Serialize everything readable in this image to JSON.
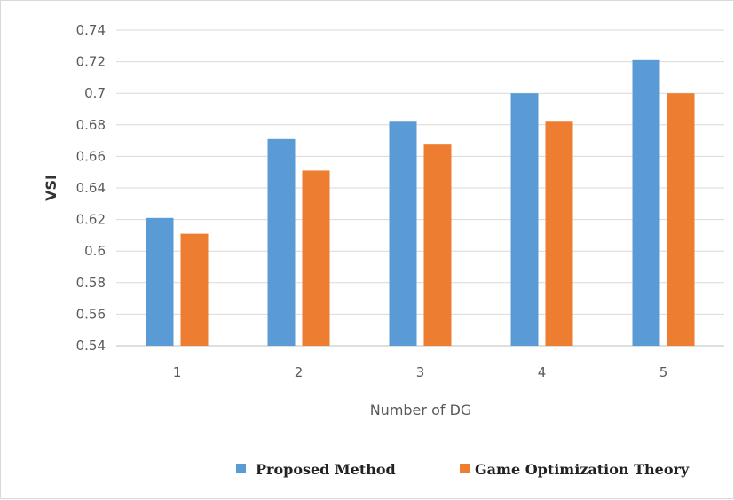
{
  "chart_data": {
    "type": "bar",
    "title": "",
    "xlabel": "Number of DG",
    "ylabel": "VSI",
    "categories": [
      "1",
      "2",
      "3",
      "4",
      "5"
    ],
    "series": [
      {
        "name": "Proposed Method",
        "color": "#5B9BD5",
        "values": [
          0.621,
          0.671,
          0.682,
          0.7,
          0.721
        ]
      },
      {
        "name": "Game Optimization Theory",
        "color": "#ED7D31",
        "values": [
          0.611,
          0.651,
          0.668,
          0.682,
          0.7
        ]
      }
    ],
    "ylim": [
      0.54,
      0.74
    ],
    "yticks": [
      "0.54",
      "0.56",
      "0.58",
      "0.6",
      "0.62",
      "0.64",
      "0.66",
      "0.68",
      "0.7",
      "0.72",
      "0.74"
    ],
    "grid": true,
    "gridline_color": "#d9d9d9",
    "legend_position": "bottom-right"
  }
}
